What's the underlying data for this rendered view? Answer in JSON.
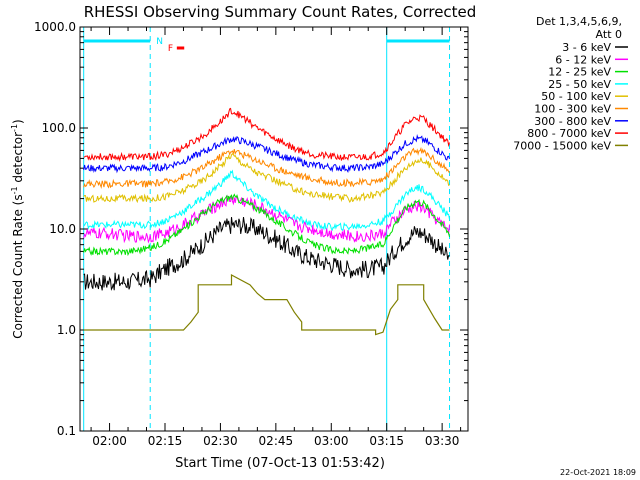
{
  "chart_data": {
    "type": "line",
    "title": "RHESSI Observing Summary Count Rates, Corrected",
    "xlabel": "Start Time (07-Oct-13 01:53:42)",
    "ylabel_main": "Corrected Count Rate (s",
    "ylabel_sup1": "-1",
    "ylabel_mid": " detector",
    "ylabel_sup2": "-1",
    "ylabel_end": ")",
    "yscale": "log",
    "ylim": [
      0.1,
      1000
    ],
    "xlim_minutes": [
      -8,
      97
    ],
    "x_tick_labels": [
      "02:00",
      "02:15",
      "02:30",
      "02:45",
      "03:00",
      "03:15",
      "03:30"
    ],
    "x_tick_minutes": [
      0,
      15,
      30,
      45,
      60,
      75,
      90
    ],
    "y_tick_labels": [
      "0.1",
      "1.0",
      "10.0",
      "100.0",
      "1000.0"
    ],
    "y_tick_values": [
      0.1,
      1,
      10,
      100,
      1000
    ],
    "legend_title_line1": "Det 1,3,4,5,6,9,",
    "legend_title_line2": "Att 0",
    "legend_placement": "right",
    "flags": {
      "night_label": "N",
      "flare_label": "F",
      "night_intervals_minutes": [
        [
          -7,
          11
        ],
        [
          75,
          92
        ]
      ],
      "flare_marker_minutes": [
        15.5,
        17.5
      ],
      "boundary_lines_minutes": [
        -7,
        11,
        75,
        92
      ]
    },
    "series": [
      {
        "name": "3 - 6 keV",
        "color": "#000000",
        "x": [
          -7,
          -5,
          0,
          5,
          11,
          15,
          20,
          25,
          30,
          33,
          36,
          40,
          45,
          50,
          55,
          60,
          65,
          70,
          74,
          77,
          80,
          83,
          85,
          87,
          90,
          92
        ],
        "y": [
          3,
          3,
          3,
          3,
          3.2,
          4,
          5,
          7,
          10,
          11,
          11,
          10,
          8,
          6,
          5,
          4.5,
          4,
          4,
          4.2,
          6,
          8,
          9.5,
          9,
          8,
          6,
          5
        ]
      },
      {
        "name": "6 - 12 keV",
        "color": "#ff00ff",
        "x": [
          -7,
          -5,
          0,
          5,
          11,
          15,
          20,
          25,
          30,
          33,
          36,
          40,
          45,
          50,
          55,
          60,
          65,
          70,
          74,
          77,
          80,
          83,
          85,
          87,
          90,
          92
        ],
        "y": [
          9,
          9,
          9,
          8.5,
          8.5,
          9,
          11,
          14,
          18,
          20,
          19,
          17,
          14,
          11,
          10,
          9,
          8.5,
          8.5,
          9,
          12,
          15,
          17,
          16,
          14,
          11,
          10
        ]
      },
      {
        "name": "12 - 25 keV",
        "color": "#00e000",
        "x": [
          -7,
          -5,
          0,
          5,
          11,
          15,
          20,
          25,
          30,
          33,
          36,
          40,
          45,
          50,
          55,
          60,
          65,
          70,
          74,
          77,
          80,
          83,
          85,
          87,
          90,
          92
        ],
        "y": [
          6,
          6,
          6,
          6,
          6.5,
          7.5,
          10,
          14,
          19,
          21,
          19,
          16,
          12,
          9,
          7,
          6.2,
          6,
          6.5,
          7,
          11,
          16,
          19,
          18,
          15,
          11,
          9
        ]
      },
      {
        "name": "25 - 50 keV",
        "color": "#00ffff",
        "x": [
          -7,
          -5,
          0,
          5,
          11,
          15,
          20,
          25,
          30,
          33,
          36,
          40,
          45,
          50,
          55,
          60,
          65,
          70,
          74,
          77,
          80,
          83,
          85,
          87,
          90,
          92
        ],
        "y": [
          11,
          11,
          11,
          11,
          11,
          12,
          15,
          20,
          28,
          36,
          28,
          21,
          16,
          13,
          11,
          10.5,
          10.5,
          11,
          12,
          16,
          22,
          26,
          25,
          21,
          16,
          13
        ]
      },
      {
        "name": "50 - 100 keV",
        "color": "#e0c000",
        "x": [
          -7,
          -5,
          0,
          5,
          11,
          15,
          20,
          25,
          30,
          33,
          36,
          40,
          45,
          50,
          55,
          60,
          65,
          70,
          74,
          77,
          80,
          83,
          85,
          87,
          90,
          92
        ],
        "y": [
          20,
          20,
          20,
          20,
          20,
          21,
          24,
          30,
          42,
          55,
          45,
          36,
          30,
          25,
          22,
          21,
          20,
          21,
          23,
          30,
          40,
          48,
          47,
          42,
          33,
          28
        ]
      },
      {
        "name": "100 - 300 keV",
        "color": "#ff8800",
        "x": [
          -7,
          -5,
          0,
          5,
          11,
          15,
          20,
          25,
          30,
          33,
          36,
          40,
          45,
          50,
          55,
          60,
          65,
          70,
          74,
          77,
          80,
          83,
          85,
          87,
          90,
          92
        ],
        "y": [
          28,
          28,
          28,
          28,
          28,
          29,
          33,
          40,
          52,
          60,
          55,
          48,
          40,
          35,
          31,
          29,
          28.5,
          29,
          31,
          40,
          52,
          60,
          58,
          52,
          42,
          36
        ]
      },
      {
        "name": "300 - 800 keV",
        "color": "#0000ff",
        "x": [
          -7,
          -5,
          0,
          5,
          11,
          15,
          20,
          25,
          30,
          33,
          36,
          40,
          45,
          50,
          55,
          60,
          65,
          70,
          74,
          77,
          80,
          83,
          85,
          87,
          90,
          92
        ],
        "y": [
          40,
          40,
          40,
          40,
          40,
          41,
          47,
          57,
          70,
          78,
          74,
          66,
          56,
          48,
          43,
          41,
          40,
          41,
          44,
          56,
          70,
          78,
          76,
          68,
          56,
          48
        ]
      },
      {
        "name": "800 - 7000 keV",
        "color": "#ff0000",
        "x": [
          -7,
          -5,
          0,
          5,
          11,
          15,
          20,
          25,
          30,
          33,
          36,
          40,
          45,
          50,
          55,
          60,
          65,
          70,
          74,
          77,
          80,
          83,
          85,
          87,
          90,
          92
        ],
        "y": [
          52,
          52,
          52,
          52,
          52,
          54,
          64,
          82,
          115,
          150,
          128,
          100,
          78,
          63,
          55,
          52,
          51,
          52,
          57,
          78,
          108,
          128,
          124,
          105,
          82,
          68
        ]
      },
      {
        "name": "7000 - 15000 keV",
        "color": "#808000",
        "x": [
          -7,
          -4,
          -4,
          11,
          11,
          20,
          22,
          24,
          24,
          33,
          33,
          38,
          40,
          42,
          44,
          48,
          50,
          52,
          52,
          66,
          66,
          72,
          72,
          74,
          76,
          78,
          78,
          85,
          85,
          88,
          90,
          92
        ],
        "y": [
          1,
          1,
          1,
          1,
          1,
          1,
          1.2,
          1.5,
          2.8,
          2.8,
          3.5,
          2.8,
          2.3,
          2,
          2,
          2,
          1.5,
          1.2,
          1,
          1,
          1,
          1,
          0.9,
          0.95,
          1.6,
          2,
          2.8,
          2.8,
          2,
          1.3,
          1,
          1
        ]
      }
    ]
  },
  "footer": {
    "timestamp": "22-Oct-2021 18:09"
  }
}
